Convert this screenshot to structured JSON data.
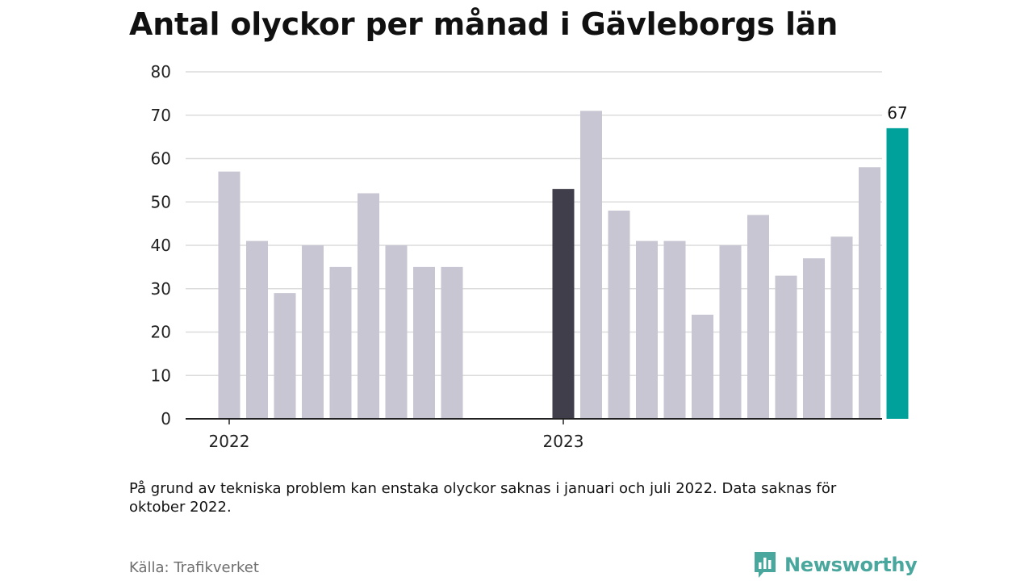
{
  "page": {
    "title": "Antal olyckor per månad i Gävleborgs län",
    "note": "På grund av tekniska problem kan enstaka olyckor saknas i januari och juli 2022. Data saknas för oktober 2022.",
    "source": "Källa: Trafikverket",
    "brand": "Newsworthy",
    "brand_icon": "newsworthy-logo-icon"
  },
  "colors": {
    "bar_default": "#c8c6d2",
    "bar_highlight_dark": "#403e4a",
    "bar_highlight_accent": "#00a19a",
    "grid": "#dcdcdc",
    "axis": "#222222",
    "brand": "#4aa79d"
  },
  "chart_data": {
    "type": "bar",
    "title": "Antal olyckor per månad i Gävleborgs län",
    "xlabel": "",
    "ylabel": "",
    "ylim": [
      0,
      80
    ],
    "yticks": [
      0,
      10,
      20,
      30,
      40,
      50,
      60,
      70,
      80
    ],
    "grid": true,
    "x": [
      "2022-01",
      "2022-02",
      "2022-03",
      "2022-04",
      "2022-05",
      "2022-06",
      "2022-07",
      "2022-08",
      "2022-09",
      "2022-10",
      "2022-11",
      "2022-12",
      "2023-01",
      "2023-02",
      "2023-03",
      "2023-04",
      "2023-05",
      "2023-06",
      "2023-07",
      "2023-08",
      "2023-09",
      "2023-10",
      "2023-11",
      "2023-12",
      "2024-01",
      "2024-02"
    ],
    "values": [
      57,
      41,
      29,
      40,
      35,
      52,
      40,
      35,
      35,
      null,
      null,
      null,
      53,
      71,
      48,
      41,
      41,
      24,
      40,
      47,
      33,
      37,
      42,
      58,
      67,
      null
    ],
    "x_tick_labels": [
      {
        "x": "2022-01",
        "label": "2022"
      },
      {
        "x": "2023-01",
        "label": "2023"
      }
    ],
    "highlights": [
      {
        "x": "2023-01",
        "color": "#403e4a"
      },
      {
        "x": "2024-01",
        "color": "#00a19a",
        "label": "67"
      }
    ]
  }
}
